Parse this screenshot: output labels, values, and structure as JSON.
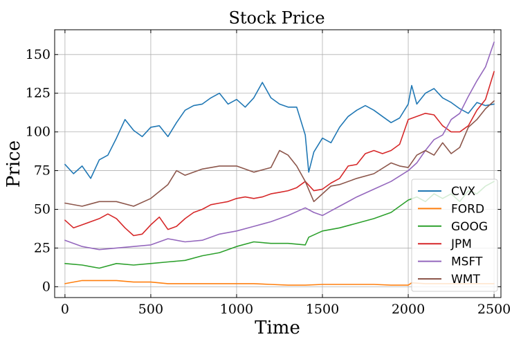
{
  "chart_data": {
    "type": "line",
    "title": "Stock Price",
    "xlabel": "Time",
    "ylabel": "Price",
    "xlim": [
      -60,
      2540
    ],
    "ylim": [
      -7,
      166
    ],
    "xticks": [
      0,
      500,
      1000,
      1500,
      2000,
      2500
    ],
    "yticks": [
      0,
      25,
      50,
      75,
      100,
      125,
      150
    ],
    "grid": true,
    "legend_position": "lower-right",
    "series": [
      {
        "name": "CVX",
        "color": "#1f77b4",
        "x": [
          0,
          50,
          100,
          150,
          200,
          250,
          300,
          350,
          400,
          450,
          500,
          550,
          600,
          650,
          700,
          750,
          800,
          850,
          900,
          950,
          1000,
          1050,
          1100,
          1150,
          1200,
          1250,
          1300,
          1350,
          1400,
          1420,
          1450,
          1500,
          1550,
          1600,
          1650,
          1700,
          1750,
          1800,
          1850,
          1900,
          1950,
          2000,
          2020,
          2050,
          2100,
          2150,
          2200,
          2250,
          2300,
          2350,
          2400,
          2450,
          2500
        ],
        "y": [
          79,
          73,
          78,
          70,
          82,
          85,
          96,
          108,
          101,
          97,
          103,
          104,
          97,
          106,
          114,
          117,
          118,
          122,
          125,
          118,
          121,
          116,
          122,
          132,
          122,
          118,
          116,
          116,
          98,
          74,
          87,
          96,
          93,
          103,
          110,
          114,
          117,
          114,
          110,
          106,
          109,
          118,
          130,
          118,
          125,
          128,
          122,
          119,
          115,
          112,
          119,
          117,
          118
        ]
      },
      {
        "name": "FORD",
        "color": "#ff7f0e",
        "x": [
          0,
          100,
          200,
          300,
          400,
          500,
          600,
          700,
          800,
          900,
          1000,
          1100,
          1200,
          1300,
          1400,
          1500,
          1600,
          1700,
          1800,
          1900,
          2000,
          2020,
          2100,
          2200,
          2300,
          2400,
          2500
        ],
        "y": [
          2,
          4,
          4,
          4,
          3,
          3,
          2,
          2,
          2,
          2,
          2,
          2,
          1.5,
          1,
          1,
          1.5,
          1.5,
          1.5,
          1.5,
          1,
          1,
          2.5,
          2,
          2,
          2,
          2,
          2
        ]
      },
      {
        "name": "GOOG",
        "color": "#2ca02c",
        "x": [
          0,
          100,
          200,
          300,
          400,
          500,
          600,
          700,
          800,
          900,
          1000,
          1100,
          1200,
          1300,
          1400,
          1420,
          1500,
          1600,
          1700,
          1800,
          1900,
          2000,
          2050,
          2100,
          2150,
          2200,
          2250,
          2300,
          2350,
          2400,
          2450,
          2500
        ],
        "y": [
          15,
          14,
          12,
          15,
          14,
          15,
          16,
          17,
          20,
          22,
          26,
          29,
          28,
          28,
          27,
          32,
          36,
          38,
          41,
          44,
          48,
          56,
          58,
          55,
          60,
          57,
          60,
          55,
          62,
          60,
          65,
          68
        ]
      },
      {
        "name": "JPM",
        "color": "#d62728",
        "x": [
          0,
          50,
          100,
          150,
          200,
          250,
          300,
          350,
          400,
          450,
          500,
          550,
          600,
          650,
          700,
          750,
          800,
          850,
          900,
          950,
          1000,
          1050,
          1100,
          1150,
          1200,
          1250,
          1300,
          1350,
          1400,
          1450,
          1500,
          1550,
          1600,
          1650,
          1700,
          1750,
          1800,
          1850,
          1900,
          1950,
          2000,
          2050,
          2100,
          2150,
          2200,
          2250,
          2300,
          2350,
          2400,
          2450,
          2500
        ],
        "y": [
          43,
          38,
          40,
          42,
          44,
          47,
          44,
          38,
          33,
          34,
          40,
          45,
          37,
          39,
          44,
          48,
          50,
          53,
          54,
          55,
          57,
          58,
          57,
          58,
          60,
          61,
          62,
          64,
          68,
          62,
          63,
          67,
          70,
          78,
          79,
          86,
          88,
          86,
          88,
          92,
          108,
          110,
          112,
          111,
          104,
          100,
          100,
          104,
          114,
          121,
          139
        ]
      },
      {
        "name": "MSFT",
        "color": "#9467bd",
        "x": [
          0,
          100,
          200,
          300,
          400,
          500,
          600,
          700,
          800,
          900,
          1000,
          1100,
          1200,
          1300,
          1400,
          1450,
          1500,
          1550,
          1600,
          1700,
          1800,
          1900,
          2000,
          2050,
          2100,
          2150,
          2200,
          2250,
          2300,
          2350,
          2400,
          2450,
          2500
        ],
        "y": [
          30,
          26,
          24,
          25,
          26,
          27,
          31,
          29,
          30,
          34,
          36,
          39,
          42,
          46,
          51,
          48,
          46,
          49,
          52,
          58,
          63,
          68,
          75,
          80,
          88,
          95,
          98,
          108,
          112,
          123,
          133,
          142,
          158
        ]
      },
      {
        "name": "WMT",
        "color": "#8c564b",
        "x": [
          0,
          100,
          200,
          300,
          400,
          500,
          600,
          650,
          700,
          800,
          900,
          1000,
          1100,
          1200,
          1250,
          1300,
          1350,
          1400,
          1450,
          1500,
          1550,
          1600,
          1700,
          1800,
          1900,
          1950,
          2000,
          2050,
          2100,
          2150,
          2200,
          2250,
          2300,
          2350,
          2400,
          2450,
          2500
        ],
        "y": [
          54,
          52,
          55,
          55,
          52,
          57,
          66,
          75,
          72,
          76,
          78,
          78,
          74,
          77,
          88,
          85,
          78,
          68,
          55,
          60,
          65,
          66,
          70,
          73,
          80,
          78,
          77,
          85,
          88,
          85,
          93,
          86,
          90,
          103,
          108,
          115,
          120
        ]
      }
    ]
  }
}
